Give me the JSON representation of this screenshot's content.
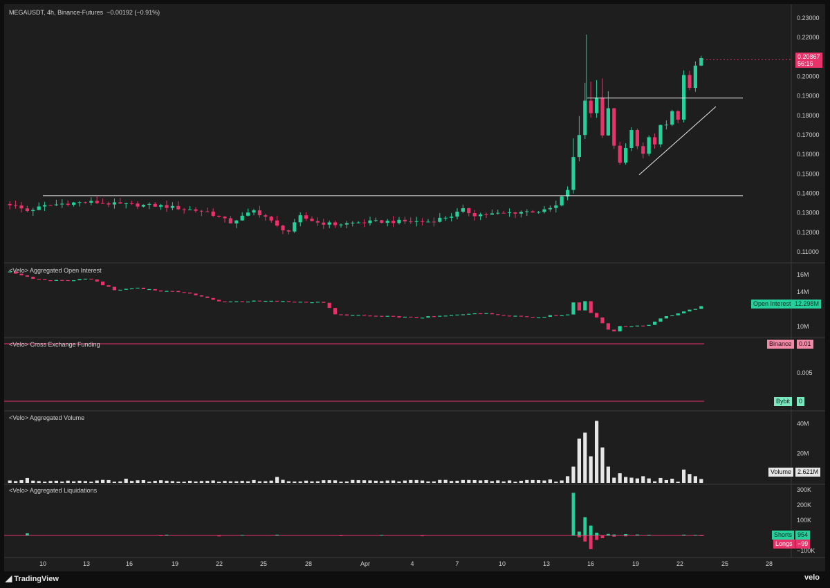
{
  "header": {
    "symbol": "MEGAUSDT",
    "interval": "4h",
    "exchange": "Binance-Futures",
    "change": "−0.00192 (−0.91%)"
  },
  "colors": {
    "background": "#1e1e1e",
    "up": "#26d09a",
    "down": "#e8326a",
    "text": "#d8d8d8",
    "grid": "#2e2e2e"
  },
  "price_badge": {
    "price": "0.20867",
    "countdown": "56:16"
  },
  "panes": {
    "open_interest": {
      "label": "<Velo> Aggregated Open Interest",
      "badge_name": "Open Interest",
      "badge_value": "12.298M"
    },
    "funding": {
      "label": "<Velo> Cross Exchange Funding",
      "binance_name": "Binance",
      "binance_value": "0.01",
      "bybit_name": "Bybit",
      "bybit_value": "0",
      "mid_tick": "0.005"
    },
    "volume": {
      "label": "<Velo> Aggregated Volume",
      "badge_name": "Volume",
      "badge_value": "2.621M"
    },
    "liquidations": {
      "label": "<Velo> Aggregated Liquidations",
      "shorts_name": "Shorts",
      "shorts_value": "954",
      "longs_name": "Longs",
      "longs_value": "−99"
    }
  },
  "footer": {
    "brand_left": "TradingView",
    "brand_right": "velo"
  },
  "chart_data": [
    {
      "type": "candlestick",
      "title": "MEGAUSDT, 4h, Binance-Futures",
      "x_ticks": [
        "10",
        "13",
        "16",
        "19",
        "22",
        "25",
        "28",
        "Apr",
        "4",
        "7",
        "10",
        "13",
        "16",
        "19",
        "22",
        "25",
        "28"
      ],
      "y_ticks": [
        "0.23000",
        "0.22000",
        "0.21000",
        "0.20000",
        "0.19000",
        "0.18000",
        "0.17000",
        "0.16000",
        "0.15000",
        "0.14000",
        "0.13000",
        "0.12000",
        "0.11000"
      ],
      "ylim": [
        0.105,
        0.235
      ],
      "last_price": 0.20867,
      "close_path": [
        [
          0,
          0.1345
        ],
        [
          3,
          0.131
        ],
        [
          6,
          0.1335
        ],
        [
          10,
          0.135
        ],
        [
          14,
          0.1355
        ],
        [
          18,
          0.1345
        ],
        [
          22,
          0.134
        ],
        [
          26,
          0.1335
        ],
        [
          30,
          0.132
        ],
        [
          34,
          0.1305
        ],
        [
          38,
          0.125
        ],
        [
          40,
          0.128
        ],
        [
          42,
          0.131
        ],
        [
          44,
          0.128
        ],
        [
          46,
          0.123
        ],
        [
          48,
          0.1205
        ],
        [
          50,
          0.128
        ],
        [
          53,
          0.125
        ],
        [
          56,
          0.124
        ],
        [
          60,
          0.125
        ],
        [
          64,
          0.1255
        ],
        [
          68,
          0.1255
        ],
        [
          72,
          0.1255
        ],
        [
          76,
          0.1285
        ],
        [
          78,
          0.1315
        ],
        [
          80,
          0.129
        ],
        [
          84,
          0.1295
        ],
        [
          88,
          0.1305
        ],
        [
          92,
          0.131
        ],
        [
          94,
          0.1335
        ],
        [
          96,
          0.142
        ],
        [
          97,
          0.158
        ],
        [
          98,
          0.17
        ],
        [
          99,
          0.188
        ],
        [
          100,
          0.181
        ],
        [
          101,
          0.19
        ],
        [
          102,
          0.17
        ],
        [
          103,
          0.183
        ],
        [
          104,
          0.165
        ],
        [
          105,
          0.155
        ],
        [
          106,
          0.163
        ],
        [
          107,
          0.172
        ],
        [
          108,
          0.165
        ],
        [
          109,
          0.16
        ],
        [
          110,
          0.168
        ],
        [
          111,
          0.165
        ],
        [
          112,
          0.175
        ],
        [
          113,
          0.175
        ],
        [
          114,
          0.182
        ],
        [
          115,
          0.177
        ],
        [
          116,
          0.2
        ],
        [
          117,
          0.195
        ],
        [
          118,
          0.205
        ],
        [
          119,
          0.2087
        ]
      ],
      "horizontal_lines": [
        0.1388,
        0.1889
      ],
      "trend_line": [
        [
          105,
          0.1495
        ],
        [
          117,
          0.1845
        ]
      ]
    },
    {
      "type": "bar",
      "title": "<Velo> Aggregated Open Interest",
      "y_ticks": [
        "16M",
        "14M",
        "10M"
      ],
      "ylim": [
        8.9,
        17.2
      ],
      "last_value": 12.298,
      "path": [
        [
          0,
          16.3
        ],
        [
          5,
          15.4
        ],
        [
          10,
          15.35
        ],
        [
          14,
          15.5
        ],
        [
          18,
          14.2
        ],
        [
          22,
          14.5
        ],
        [
          26,
          14.1
        ],
        [
          30,
          14.0
        ],
        [
          36,
          12.9
        ],
        [
          44,
          12.95
        ],
        [
          54,
          12.8
        ],
        [
          56,
          11.4
        ],
        [
          70,
          11.05
        ],
        [
          76,
          11.3
        ],
        [
          80,
          11.6
        ],
        [
          90,
          11.1
        ],
        [
          96,
          11.4
        ],
        [
          97,
          12.8
        ],
        [
          98,
          11.9
        ],
        [
          99,
          13.0
        ],
        [
          100,
          11.6
        ],
        [
          102,
          10.4
        ],
        [
          103,
          9.7
        ],
        [
          104,
          9.5
        ],
        [
          105,
          10.0
        ],
        [
          110,
          10.2
        ],
        [
          112,
          11.0
        ],
        [
          116,
          11.7
        ],
        [
          119,
          12.3
        ]
      ]
    },
    {
      "type": "line",
      "title": "<Velo> Cross Exchange Funding",
      "y_ticks": [
        "0.005"
      ],
      "ylim": [
        0,
        0.01
      ],
      "series": [
        {
          "name": "Binance",
          "values": [
            0.01,
            0.01
          ]
        },
        {
          "name": "Bybit",
          "values": [
            0,
            0
          ]
        }
      ]
    },
    {
      "type": "bar",
      "title": "<Velo> Aggregated Volume",
      "y_ticks": [
        "40M",
        "20M"
      ],
      "ylim": [
        0,
        45
      ],
      "last_value": 2.621,
      "baseline": 1.4,
      "spikes": [
        [
          3,
          3.3
        ],
        [
          20,
          2.8
        ],
        [
          46,
          4.0
        ],
        [
          74,
          2.0
        ],
        [
          93,
          2.3
        ],
        [
          96,
          4.5
        ],
        [
          97,
          11
        ],
        [
          98,
          30
        ],
        [
          99,
          34
        ],
        [
          100,
          18
        ],
        [
          101,
          42
        ],
        [
          102,
          24
        ],
        [
          103,
          11
        ],
        [
          104,
          3.5
        ],
        [
          105,
          6.5
        ],
        [
          106,
          4.0
        ],
        [
          107,
          3.5
        ],
        [
          108,
          3.0
        ],
        [
          109,
          4.5
        ],
        [
          110,
          3.0
        ],
        [
          112,
          3.3
        ],
        [
          114,
          2.8
        ],
        [
          116,
          9.0
        ],
        [
          117,
          6.0
        ],
        [
          118,
          4.5
        ],
        [
          119,
          2.6
        ]
      ]
    },
    {
      "type": "bar",
      "title": "<Velo> Aggregated Liquidations",
      "y_ticks": [
        "300K",
        "200K",
        "100K",
        "−100K"
      ],
      "ylim": [
        -130000,
        330000
      ],
      "series": [
        {
          "name": "Shorts",
          "values": [
            [
              3,
              14000
            ],
            [
              27,
              5000
            ],
            [
              40,
              3000
            ],
            [
              46,
              5000
            ],
            [
              64,
              3000
            ],
            [
              97,
              280000
            ],
            [
              98,
              25000
            ],
            [
              99,
              120000
            ],
            [
              100,
              65000
            ],
            [
              101,
              18000
            ],
            [
              103,
              10000
            ],
            [
              104,
              6000
            ],
            [
              106,
              9000
            ],
            [
              108,
              6000
            ],
            [
              110,
              4000
            ],
            [
              116,
              5000
            ],
            [
              118,
              3000
            ],
            [
              119,
              954
            ]
          ]
        },
        {
          "name": "Longs",
          "values": [
            [
              26,
              -4000
            ],
            [
              36,
              -6000
            ],
            [
              57,
              -4000
            ],
            [
              71,
              -5000
            ],
            [
              98,
              -12000
            ],
            [
              99,
              -40000
            ],
            [
              100,
              -90000
            ],
            [
              101,
              -30000
            ],
            [
              102,
              -18000
            ],
            [
              104,
              -8000
            ],
            [
              106,
              -6000
            ],
            [
              119,
              -99
            ]
          ]
        }
      ]
    }
  ]
}
